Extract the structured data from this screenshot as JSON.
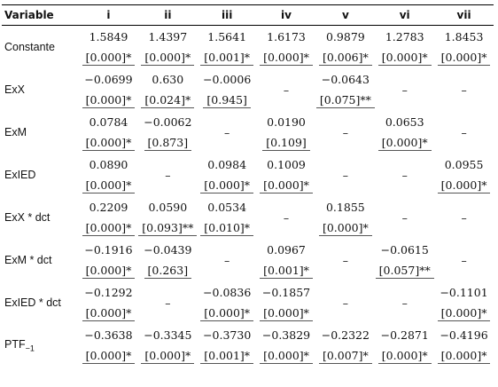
{
  "table": {
    "header": {
      "variable": "Variable",
      "columns": [
        "i",
        "ii",
        "iii",
        "iv",
        "v",
        "vi",
        "vii"
      ]
    },
    "rows": [
      {
        "label": "Constante",
        "label_sub": "",
        "coef": [
          "1.5849",
          "1.4397",
          "1.5641",
          "1.6173",
          "0.9879",
          "1.2783",
          "1.8453"
        ],
        "pval": [
          "[0.000]*",
          "[0.000]*",
          "[0.001]*",
          "[0.000]*",
          "[0.006]*",
          "[0.000]*",
          "[0.000]*"
        ]
      },
      {
        "label": "ExX",
        "label_sub": "",
        "coef": [
          "−0.0699",
          "0.630",
          "−0.0006",
          "–",
          "−0.0643",
          "–",
          "–"
        ],
        "pval": [
          "[0.000]*",
          "[0.024]*",
          "[0.945]",
          "",
          "[0.075]**",
          "",
          ""
        ]
      },
      {
        "label": "ExM",
        "label_sub": "",
        "coef": [
          "0.0784",
          "−0.0062",
          "–",
          "0.0190",
          "–",
          "0.0653",
          "–"
        ],
        "pval": [
          "[0.000]*",
          "[0.873]",
          "",
          "[0.109]",
          "",
          "[0.000]*",
          ""
        ]
      },
      {
        "label": "ExIED",
        "label_sub": "",
        "coef": [
          "0.0890",
          "–",
          "0.0984",
          "0.1009",
          "–",
          "–",
          "0.0955"
        ],
        "pval": [
          "[0.000]*",
          "",
          "[0.000]*",
          "[0.000]*",
          "",
          "",
          "[0.000]*"
        ]
      },
      {
        "label": "ExX * dct",
        "label_sub": "",
        "coef": [
          "0.2209",
          "0.0590",
          "0.0534",
          "–",
          "0.1855",
          "–",
          "–"
        ],
        "pval": [
          "[0.000]*",
          "[0.093]**",
          "[0.010]*",
          "",
          "[0.000]*",
          "",
          ""
        ]
      },
      {
        "label": "ExM * dct",
        "label_sub": "",
        "coef": [
          "−0.1916",
          "−0.0439",
          "–",
          "0.0967",
          "–",
          "−0.0615",
          "–"
        ],
        "pval": [
          "[0.000]*",
          "[0.263]",
          "",
          "[0.001]*",
          "",
          "[0.057]**",
          ""
        ]
      },
      {
        "label": "ExIED * dct",
        "label_sub": "",
        "coef": [
          "−0.1292",
          "–",
          "−0.0836",
          "−0.1857",
          "–",
          "–",
          "−0.1101"
        ],
        "pval": [
          "[0.000]*",
          "",
          "[0.000]*",
          "[0.000]*",
          "",
          "",
          "[0.000]*"
        ]
      },
      {
        "label": "PTF",
        "label_sub": "−1",
        "coef": [
          "−0.3638",
          "−0.3345",
          "−0.3730",
          "−0.3829",
          "−0.2322",
          "−0.2871",
          "−0.4196"
        ],
        "pval": [
          "[0.000]*",
          "[0.000]*",
          "[0.001]*",
          "[0.000]*",
          "[0.007]*",
          "[0.000]*",
          "[0.000]*"
        ]
      }
    ]
  }
}
